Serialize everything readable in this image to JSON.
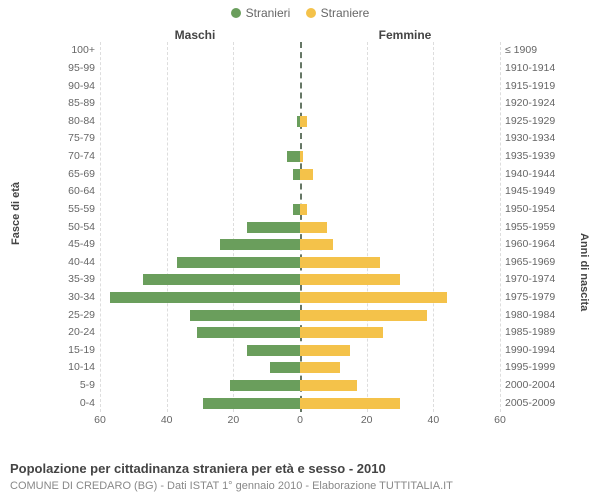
{
  "type": "population-pyramid",
  "legend": {
    "male": {
      "label": "Stranieri",
      "color": "#6a9e5c"
    },
    "female": {
      "label": "Straniere",
      "color": "#f4c24a"
    }
  },
  "column_headers": {
    "male": "Maschi",
    "female": "Femmine"
  },
  "axis_titles": {
    "left": "Fasce di età",
    "right": "Anni di nascita"
  },
  "caption_title": "Popolazione per cittadinanza straniera per età e sesso - 2010",
  "caption_sub": "COMUNE DI CREDARO (BG) - Dati ISTAT 1° gennaio 2010 - Elaborazione TUTTITALIA.IT",
  "grid_color": "#dddddd",
  "plot_bg": "#ffffff",
  "label_fontsize": 10.5,
  "title_fontsize": 13,
  "x_axis": {
    "max": 60,
    "tick_step": 20,
    "ticks_male": [
      60,
      40,
      20,
      0
    ],
    "ticks_female": [
      20,
      40,
      60
    ]
  },
  "rows": [
    {
      "age": "100+",
      "birth": "≤ 1909",
      "m": 0,
      "f": 0
    },
    {
      "age": "95-99",
      "birth": "1910-1914",
      "m": 0,
      "f": 0
    },
    {
      "age": "90-94",
      "birth": "1915-1919",
      "m": 0,
      "f": 0
    },
    {
      "age": "85-89",
      "birth": "1920-1924",
      "m": 0,
      "f": 0
    },
    {
      "age": "80-84",
      "birth": "1925-1929",
      "m": 1,
      "f": 2
    },
    {
      "age": "75-79",
      "birth": "1930-1934",
      "m": 0,
      "f": 0
    },
    {
      "age": "70-74",
      "birth": "1935-1939",
      "m": 4,
      "f": 1
    },
    {
      "age": "65-69",
      "birth": "1940-1944",
      "m": 2,
      "f": 4
    },
    {
      "age": "60-64",
      "birth": "1945-1949",
      "m": 0,
      "f": 0
    },
    {
      "age": "55-59",
      "birth": "1950-1954",
      "m": 2,
      "f": 2
    },
    {
      "age": "50-54",
      "birth": "1955-1959",
      "m": 16,
      "f": 8
    },
    {
      "age": "45-49",
      "birth": "1960-1964",
      "m": 24,
      "f": 10
    },
    {
      "age": "40-44",
      "birth": "1965-1969",
      "m": 37,
      "f": 24
    },
    {
      "age": "35-39",
      "birth": "1970-1974",
      "m": 47,
      "f": 30
    },
    {
      "age": "30-34",
      "birth": "1975-1979",
      "m": 57,
      "f": 44
    },
    {
      "age": "25-29",
      "birth": "1980-1984",
      "m": 33,
      "f": 38
    },
    {
      "age": "20-24",
      "birth": "1985-1989",
      "m": 31,
      "f": 25
    },
    {
      "age": "15-19",
      "birth": "1990-1994",
      "m": 16,
      "f": 15
    },
    {
      "age": "10-14",
      "birth": "1995-1999",
      "m": 9,
      "f": 12
    },
    {
      "age": "5-9",
      "birth": "2000-2004",
      "m": 21,
      "f": 17
    },
    {
      "age": "0-4",
      "birth": "2005-2009",
      "m": 29,
      "f": 30
    }
  ]
}
